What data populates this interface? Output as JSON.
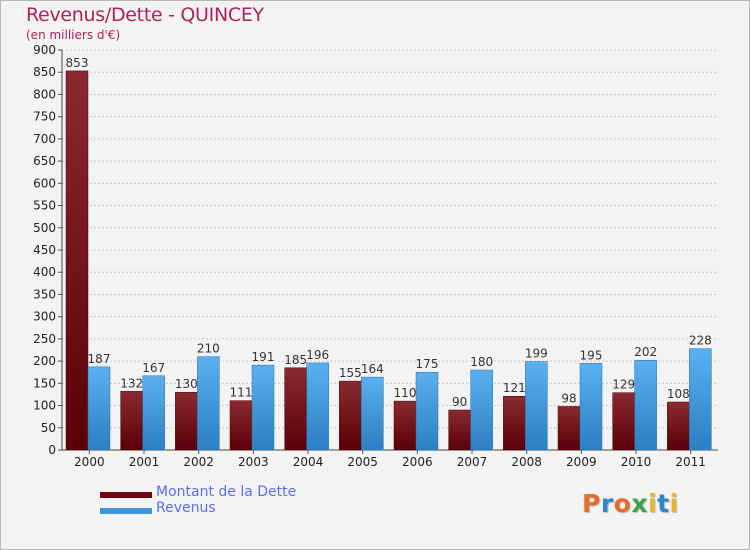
{
  "header": {
    "title": "Revenus/Dette - QUINCEY",
    "subtitle": "(en milliers d'€)"
  },
  "legend": {
    "dette_label": "Montant de la Dette",
    "revenus_label": "Revenus"
  },
  "logo": {
    "text": "Proxiti"
  },
  "colors": {
    "dette": "#6b0a12",
    "revenus": "#3d94d8",
    "title": "#b1205a",
    "legend_text": "#5b6df0"
  },
  "chart_data": {
    "type": "bar",
    "title": "Revenus/Dette - QUINCEY",
    "ylabel": "(en milliers d'€)",
    "xlabel": "",
    "categories": [
      "2000",
      "2001",
      "2002",
      "2003",
      "2004",
      "2005",
      "2006",
      "2007",
      "2008",
      "2009",
      "2010",
      "2011"
    ],
    "series": [
      {
        "name": "Montant de la Dette",
        "values": [
          853,
          132,
          130,
          111,
          185,
          155,
          110,
          90,
          121,
          98,
          129,
          108
        ]
      },
      {
        "name": "Revenus",
        "values": [
          187,
          167,
          210,
          191,
          196,
          164,
          175,
          180,
          199,
          195,
          202,
          228
        ]
      }
    ],
    "ylim": [
      0,
      900
    ],
    "yticks": [
      0,
      50,
      100,
      150,
      200,
      250,
      300,
      350,
      400,
      450,
      500,
      550,
      600,
      650,
      700,
      750,
      800,
      850,
      900
    ],
    "grid": true,
    "legend_position": "bottom-left"
  }
}
